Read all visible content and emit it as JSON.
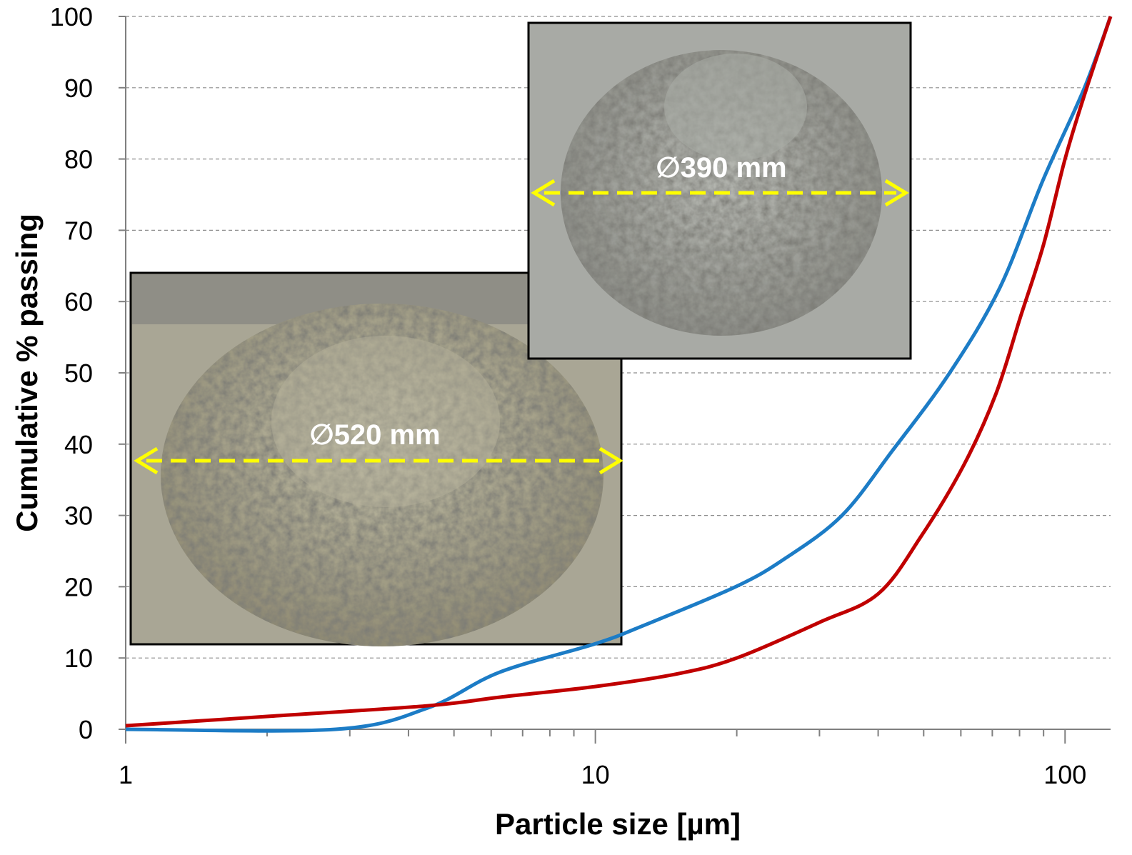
{
  "chart_data": {
    "type": "line",
    "x_label": "Particle size [µm]",
    "y_label": "Cumulative % passing",
    "xscale": "log",
    "xlim": [
      1,
      125
    ],
    "xticks": [
      1,
      10,
      100
    ],
    "xminorticks": [
      2,
      3,
      4,
      5,
      6,
      7,
      8,
      9,
      20,
      30,
      40,
      50,
      60,
      70,
      80,
      90
    ],
    "ylim": [
      0,
      100
    ],
    "yticks": [
      0,
      10,
      20,
      30,
      40,
      50,
      60,
      70,
      80,
      90,
      100
    ],
    "grid": true,
    "annotations": [
      "∅390 mm",
      "∅520 mm"
    ],
    "series": [
      {
        "color": "#1c7cc6",
        "x": [
          1,
          2.8,
          4.4,
          6.25,
          10,
          12.6,
          19.9,
          25.4,
          33.5,
          42.8,
          56.8,
          72.7,
          89.7,
          110,
          125
        ],
        "values": [
          0,
          0,
          3,
          8,
          12,
          14.5,
          20,
          24,
          30,
          39,
          50,
          62,
          77,
          90,
          100
        ]
      },
      {
        "color": "#c00000",
        "x": [
          1,
          2,
          4.4,
          6.25,
          10,
          15,
          20,
          30,
          40,
          49.3,
          60.8,
          71.2,
          80.5,
          90,
          100,
          110,
          125
        ],
        "values": [
          0.5,
          1.8,
          3.3,
          4.5,
          6,
          7.8,
          10,
          15,
          19,
          27,
          37,
          47,
          58,
          68,
          80,
          89,
          100
        ]
      }
    ]
  }
}
